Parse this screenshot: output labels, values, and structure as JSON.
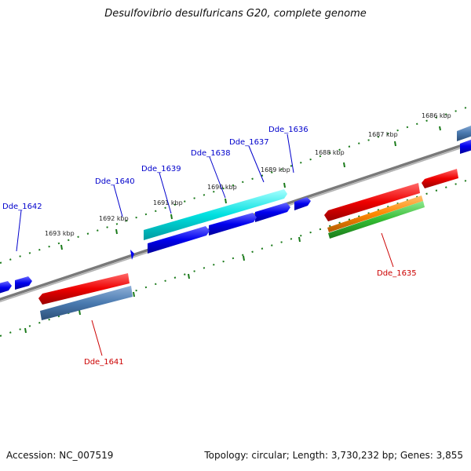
{
  "title": "Desulfovibrio desulfuricans G20, complete genome",
  "footer": {
    "accession": "Accession: NC_007519",
    "info": "Topology: circular; Length: 3,730,232 bp; Genes: 3,855"
  },
  "scale_ticks": [
    "1686 kbp",
    "1687 kbp",
    "1688 kbp",
    "1689 kbp",
    "1690 kbp",
    "1691 kbp",
    "1692 kbp",
    "1693 kbp"
  ],
  "genes": {
    "top": [
      "Dde_1636",
      "Dde_1637",
      "Dde_1638",
      "Dde_1639",
      "Dde_1640",
      "Dde_1642"
    ],
    "bottom": [
      "Dde_1635",
      "Dde_1641"
    ]
  },
  "colors": {
    "backbone": "#808080",
    "tick": "#1a7a1a",
    "blue_gene": "#0000ee",
    "cyan_gene": "#00dddd",
    "red_gene": "#ee0000",
    "steel_gene": "#4a7ab0",
    "orange_gene": "#ff8800",
    "green_gene": "#33bb33",
    "top_label": "#0000cc",
    "bottom_label": "#cc0000"
  }
}
